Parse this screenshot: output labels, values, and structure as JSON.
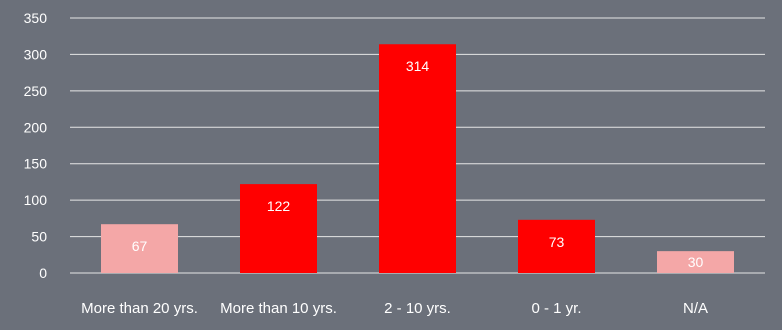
{
  "colors": {
    "background": "#6b707a",
    "gridline": "#e6e6e6",
    "axis_text": "#ffffff",
    "bar_primary": "#ff0000",
    "bar_light": "#f4a7a7",
    "data_label": "#ffffff"
  },
  "chart_data": {
    "type": "bar",
    "title": "",
    "xlabel": "",
    "ylabel": "",
    "categories": [
      "More than 20 yrs.",
      "More than 10 yrs.",
      "2 - 10 yrs.",
      "0 - 1 yr.",
      "N/A"
    ],
    "values": [
      67,
      122,
      314,
      73,
      30
    ],
    "bar_colors": [
      "#f4a7a7",
      "#ff0000",
      "#ff0000",
      "#ff0000",
      "#f4a7a7"
    ],
    "data_labels": [
      "67",
      "122",
      "314",
      "73",
      "30"
    ],
    "ylim": [
      0,
      350
    ],
    "yticks": [
      0,
      50,
      100,
      150,
      200,
      250,
      300,
      350
    ],
    "ytick_labels": [
      "0",
      "50",
      "100",
      "150",
      "200",
      "250",
      "300",
      "350"
    ],
    "grid": true,
    "legend": "none"
  }
}
